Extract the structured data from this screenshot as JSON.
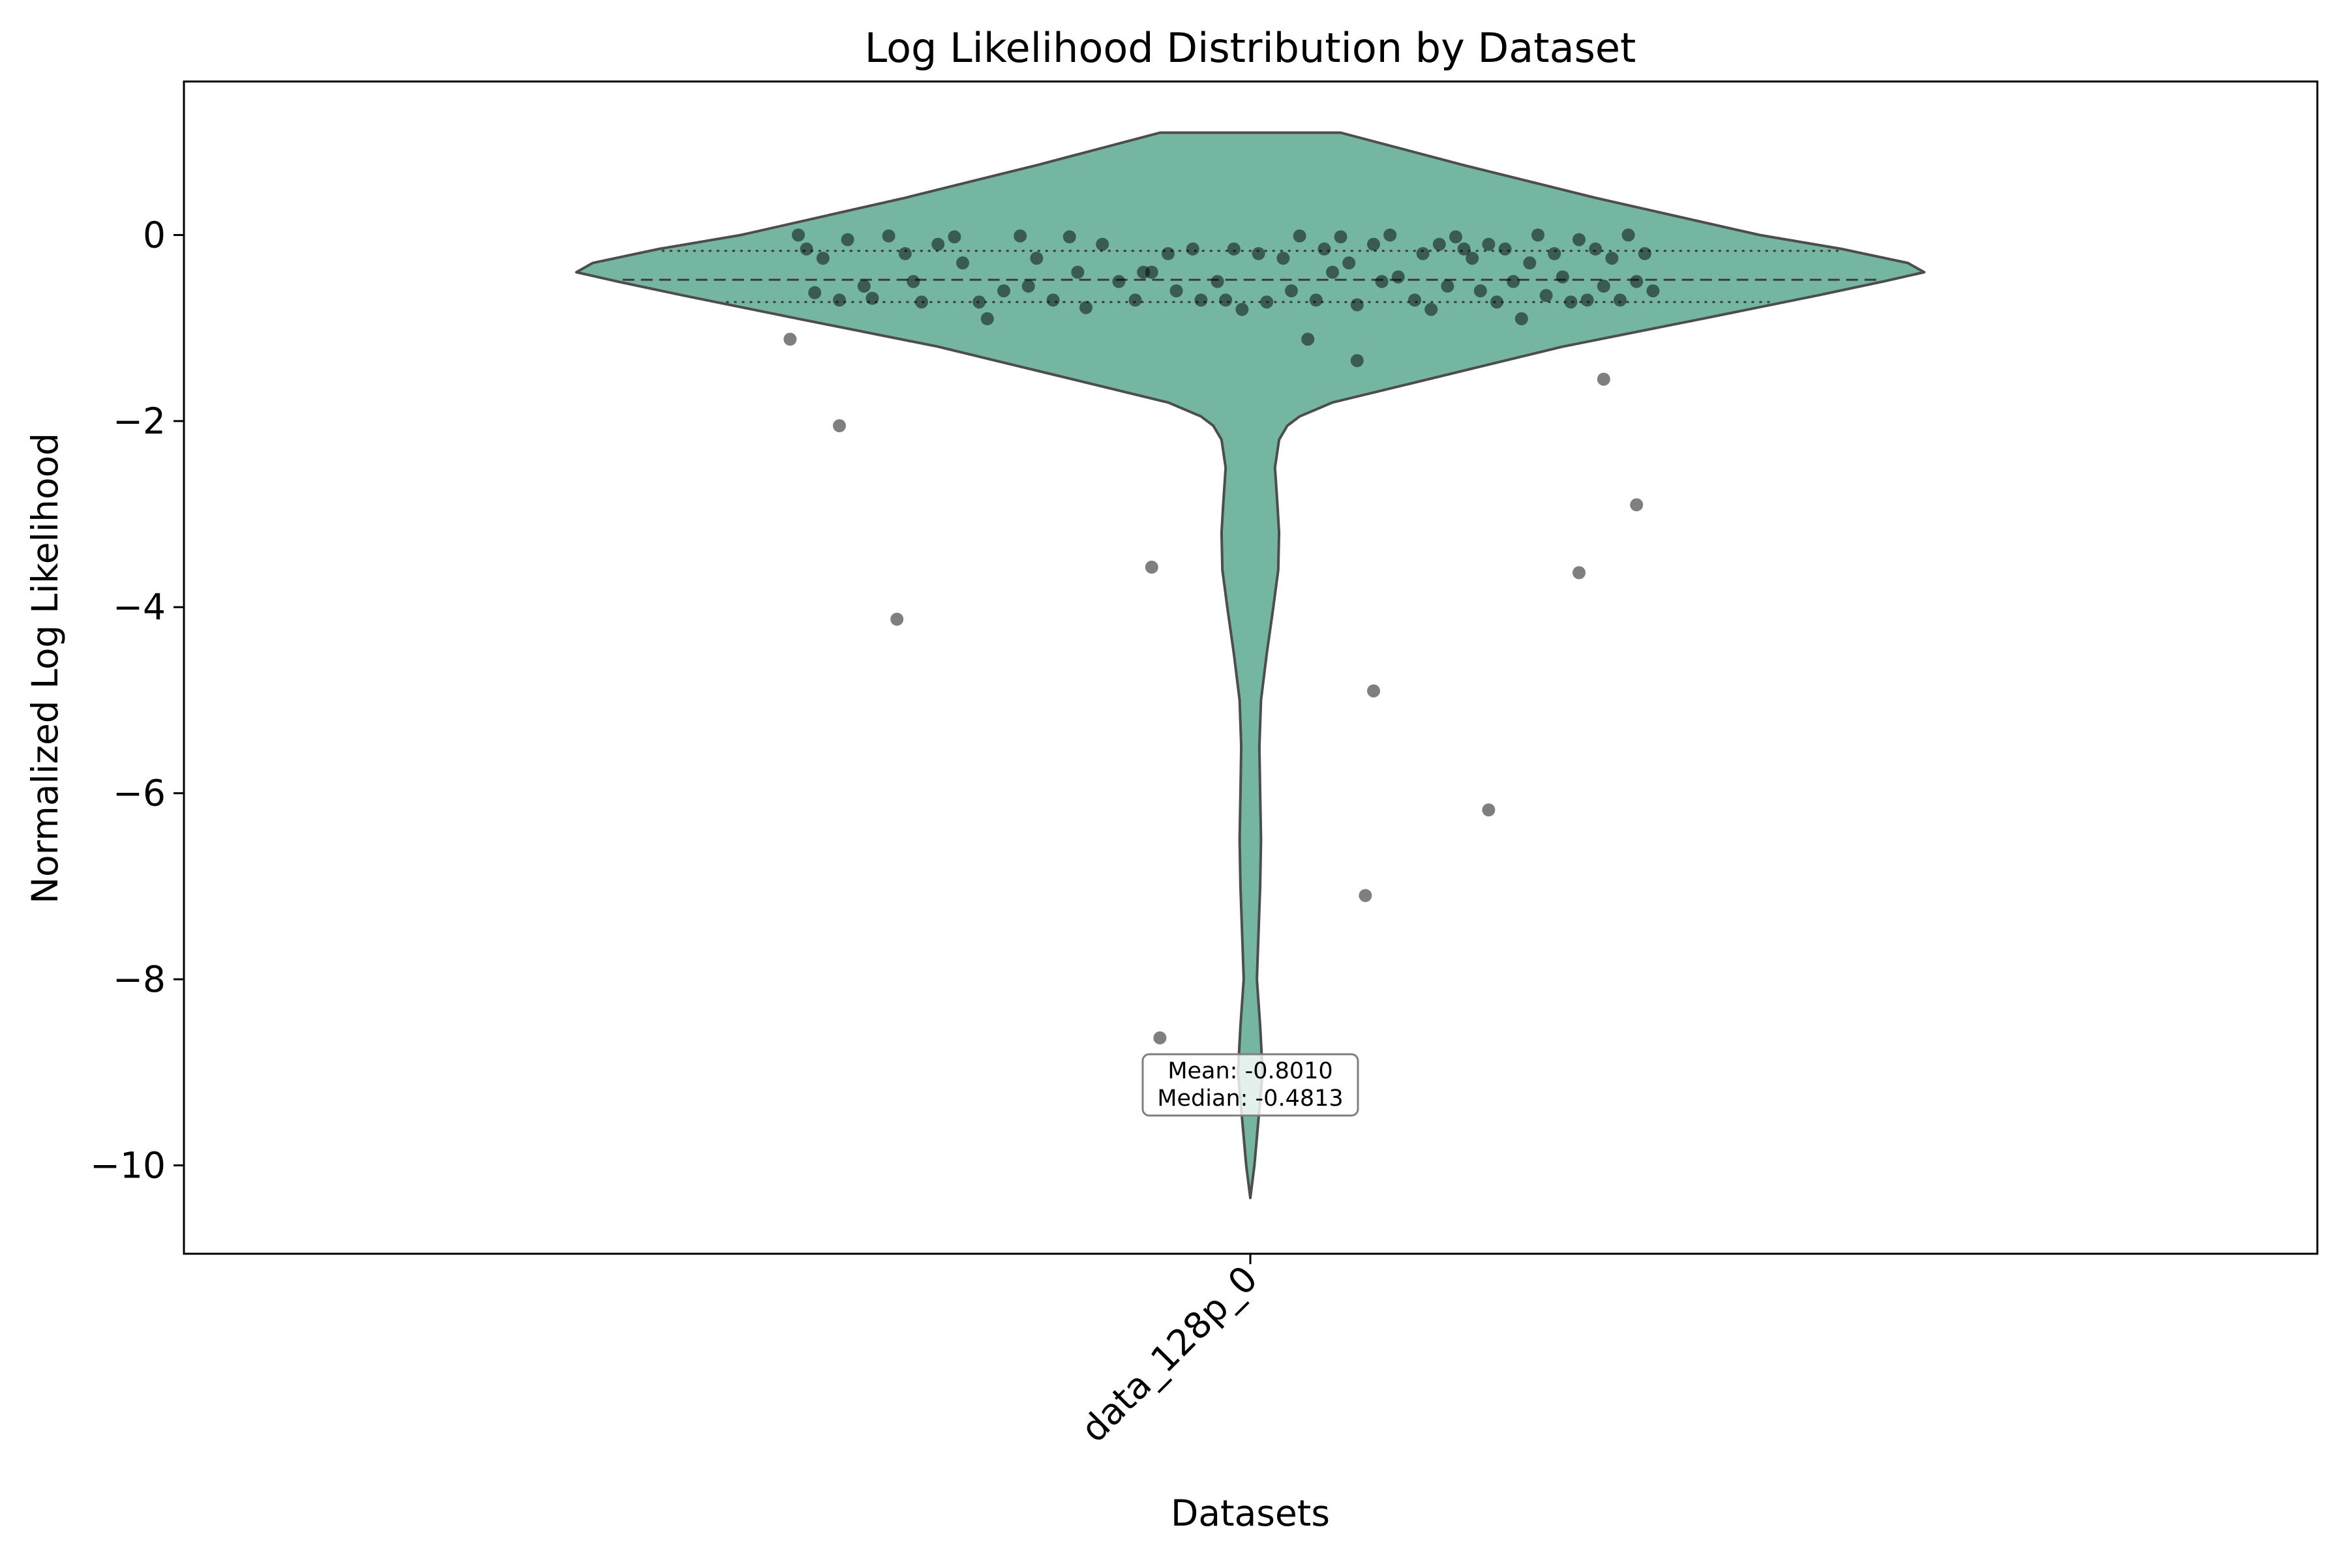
{
  "chart_data": {
    "type": "violin",
    "title": "Log Likelihood Distribution by Dataset",
    "xlabel": "Datasets",
    "ylabel": "Normalized Log Likelihood",
    "categories": [
      "data_128p_0"
    ],
    "ylim": [
      -10.95,
      1.65
    ],
    "yticks": [
      0,
      -2,
      -4,
      -6,
      -8,
      -10
    ],
    "ytick_labels": [
      "0",
      "−2",
      "−4",
      "−6",
      "−8",
      "−10"
    ],
    "grid": false,
    "legend": false,
    "colors": {
      "violin_fill": "#74b6a2",
      "violin_edge": "#4d4d4d",
      "points": "#000000",
      "inner_lines": "#3a3a3a"
    },
    "quartiles": {
      "q1": -0.72,
      "median": -0.4813,
      "q3": -0.17
    },
    "violin_profile": {
      "y": [
        1.1,
        0.75,
        0.4,
        0.0,
        -0.15,
        -0.3,
        -0.4,
        -0.5,
        -0.65,
        -0.9,
        -1.2,
        -1.5,
        -1.8,
        -1.95,
        -2.05,
        -2.2,
        -2.5,
        -2.9,
        -3.2,
        -3.6,
        -4.0,
        -4.5,
        -5.0,
        -5.5,
        -6.0,
        -6.5,
        -7.0,
        -7.5,
        -8.0,
        -8.5,
        -9.0,
        -9.5,
        -10.0,
        -10.35
      ],
      "half_width": [
        0.11,
        0.26,
        0.42,
        0.62,
        0.72,
        0.8,
        0.82,
        0.77,
        0.69,
        0.55,
        0.38,
        0.24,
        0.1,
        0.06,
        0.045,
        0.035,
        0.03,
        0.033,
        0.035,
        0.034,
        0.028,
        0.02,
        0.013,
        0.011,
        0.012,
        0.013,
        0.012,
        0.01,
        0.008,
        0.012,
        0.015,
        0.01,
        0.005,
        0.0
      ]
    },
    "points": [
      [
        -0.55,
        0.0
      ],
      [
        -0.54,
        -0.15
      ],
      [
        -0.52,
        -0.25
      ],
      [
        -0.53,
        -0.62
      ],
      [
        -0.5,
        -0.7
      ],
      [
        -0.49,
        -0.05
      ],
      [
        -0.47,
        -0.55
      ],
      [
        -0.46,
        -0.68
      ],
      [
        -0.44,
        -0.01
      ],
      [
        -0.42,
        -0.2
      ],
      [
        -0.41,
        -0.5
      ],
      [
        -0.4,
        -0.72
      ],
      [
        -0.38,
        -0.1
      ],
      [
        -0.36,
        -0.02
      ],
      [
        -0.35,
        -0.3
      ],
      [
        -0.33,
        -0.72
      ],
      [
        -0.32,
        -0.9
      ],
      [
        -0.3,
        -0.6
      ],
      [
        -0.28,
        -0.01
      ],
      [
        -0.27,
        -0.55
      ],
      [
        -0.26,
        -0.25
      ],
      [
        -0.24,
        -0.7
      ],
      [
        -0.22,
        -0.02
      ],
      [
        -0.21,
        -0.4
      ],
      [
        -0.2,
        -0.78
      ],
      [
        -0.18,
        -0.1
      ],
      [
        -0.16,
        -0.5
      ],
      [
        -0.14,
        -0.7
      ],
      [
        -0.12,
        -0.4
      ],
      [
        -0.1,
        -0.2
      ],
      [
        -0.09,
        -0.6
      ],
      [
        -0.07,
        -0.15
      ],
      [
        -0.06,
        -0.7
      ],
      [
        -0.04,
        -0.5
      ],
      [
        -0.02,
        -0.15
      ],
      [
        -0.01,
        -0.8
      ],
      [
        0.01,
        -0.2
      ],
      [
        0.02,
        -0.72
      ],
      [
        0.04,
        -0.25
      ],
      [
        0.05,
        -0.6
      ],
      [
        0.06,
        -0.01
      ],
      [
        0.08,
        -0.7
      ],
      [
        0.09,
        -0.15
      ],
      [
        0.1,
        -0.4
      ],
      [
        0.11,
        -0.02
      ],
      [
        0.12,
        -0.3
      ],
      [
        0.13,
        -0.75
      ],
      [
        0.15,
        -0.1
      ],
      [
        0.16,
        -0.5
      ],
      [
        0.17,
        -0.0
      ],
      [
        0.18,
        -0.45
      ],
      [
        0.2,
        -0.7
      ],
      [
        0.21,
        -0.2
      ],
      [
        0.22,
        -0.8
      ],
      [
        0.23,
        -0.1
      ],
      [
        0.24,
        -0.55
      ],
      [
        0.25,
        -0.02
      ],
      [
        0.27,
        -0.25
      ],
      [
        0.28,
        -0.6
      ],
      [
        0.29,
        -0.1
      ],
      [
        0.3,
        -0.72
      ],
      [
        0.31,
        -0.15
      ],
      [
        0.32,
        -0.5
      ],
      [
        0.33,
        -0.9
      ],
      [
        0.34,
        -0.3
      ],
      [
        0.35,
        -0.0
      ],
      [
        0.36,
        -0.65
      ],
      [
        0.37,
        -0.2
      ],
      [
        0.38,
        -0.45
      ],
      [
        0.39,
        -0.72
      ],
      [
        0.4,
        -0.05
      ],
      [
        0.41,
        -0.7
      ],
      [
        0.42,
        -0.15
      ],
      [
        0.43,
        -0.55
      ],
      [
        0.44,
        -0.25
      ],
      [
        0.45,
        -0.7
      ],
      [
        0.46,
        -0.0
      ],
      [
        0.47,
        -0.5
      ],
      [
        0.48,
        -0.2
      ],
      [
        0.49,
        -0.6
      ],
      [
        -0.56,
        -1.12
      ],
      [
        -0.5,
        -2.05
      ],
      [
        -0.43,
        -4.13
      ],
      [
        -0.12,
        -3.57
      ],
      [
        -0.11,
        -8.63
      ],
      [
        -0.03,
        -0.7
      ],
      [
        0.07,
        -1.12
      ],
      [
        0.13,
        -1.35
      ],
      [
        0.15,
        -4.9
      ],
      [
        0.14,
        -7.1
      ],
      [
        0.29,
        -6.18
      ],
      [
        0.4,
        -3.63
      ],
      [
        0.43,
        -1.55
      ],
      [
        0.47,
        -2.9
      ],
      [
        -0.13,
        -0.4
      ],
      [
        0.26,
        -0.15
      ]
    ],
    "annotation": {
      "mean_label": "Mean: -0.8010",
      "median_label": "Median: -0.4813"
    }
  }
}
